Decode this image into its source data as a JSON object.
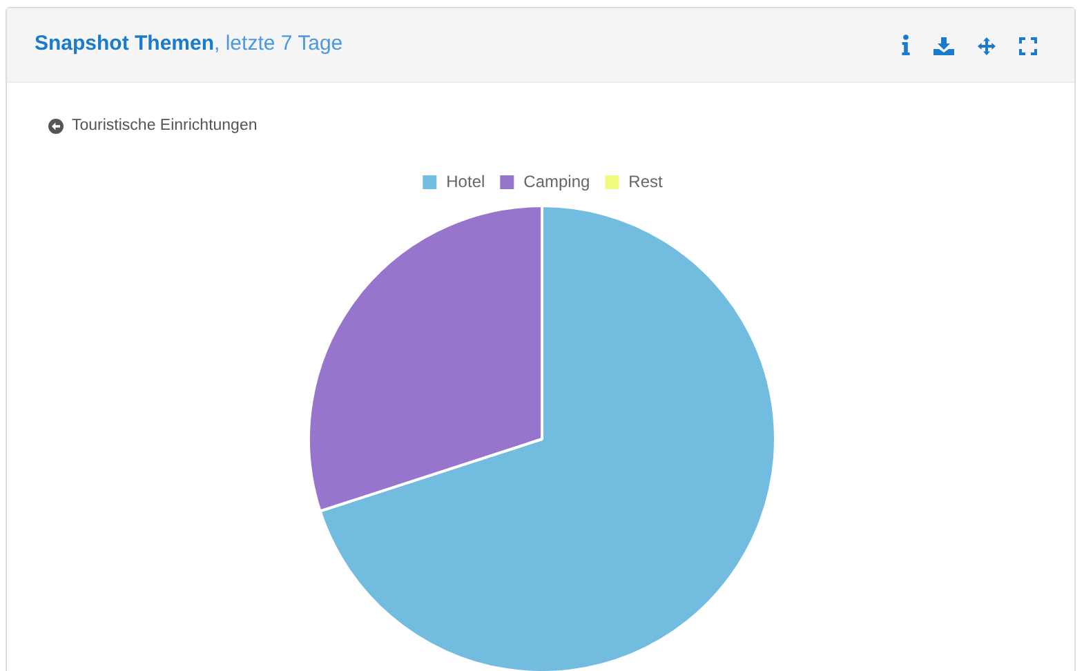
{
  "chart_data": {
    "type": "pie",
    "title": "Snapshot Themen",
    "subtitle": ", letzte 7 Tage",
    "annotations": [
      "Touristische Einrichtungen"
    ],
    "categories": [
      "Hotel",
      "Camping",
      "Rest"
    ],
    "values": [
      70,
      30,
      0
    ],
    "colors": [
      "#72bddf",
      "#9775cd",
      "#f1fb80"
    ],
    "legend": "top"
  }
}
